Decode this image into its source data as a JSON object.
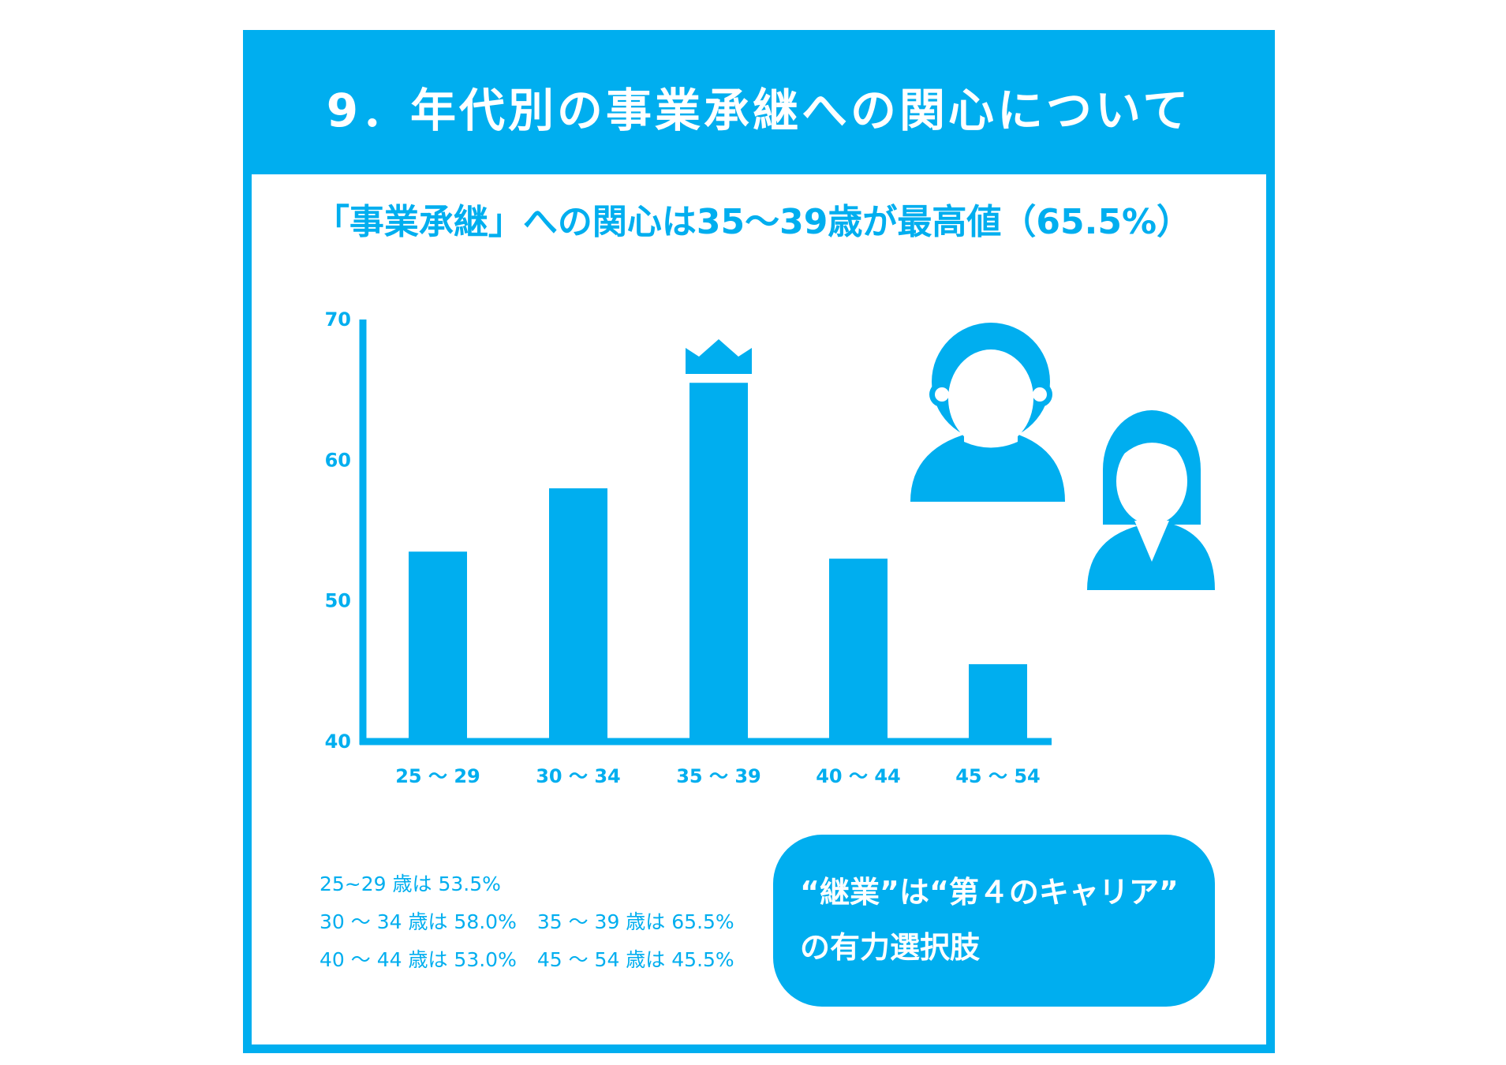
{
  "header": {
    "title": "9．年代別の事業承継への関心について"
  },
  "subtitle": "「事業承継」への関心は35〜39歳が最高値（65.5%）",
  "colors": {
    "accent": "#00aeef",
    "background": "#ffffff"
  },
  "icons": [
    "crown-icon",
    "man-icon",
    "woman-icon"
  ],
  "chart_data": {
    "type": "bar",
    "categories": [
      "25 〜 29",
      "30 〜 34",
      "35 〜 39",
      "40 〜 44",
      "45 〜 54"
    ],
    "values": [
      53.5,
      58.0,
      65.5,
      53.0,
      45.5
    ],
    "yticks": [
      "70",
      "60",
      "50",
      "40"
    ],
    "ylim": [
      40,
      70
    ],
    "highlight_index": 2,
    "title": "「事業承継」への関心は35〜39歳が最高値（65.5%）",
    "xlabel": "",
    "ylabel": ""
  },
  "value_list": {
    "line1": "25~29 歳は 53.5%",
    "line2a": "30 〜 34 歳は 58.0%",
    "line2b": "35 〜 39 歳は 65.5%",
    "line3a": "40 〜 44 歳は 53.0%",
    "line3b": "45 〜 54 歳は 45.5%"
  },
  "callout": {
    "line1": "“継業”は“第４のキャリア”",
    "line2": "の有力選択肢"
  }
}
